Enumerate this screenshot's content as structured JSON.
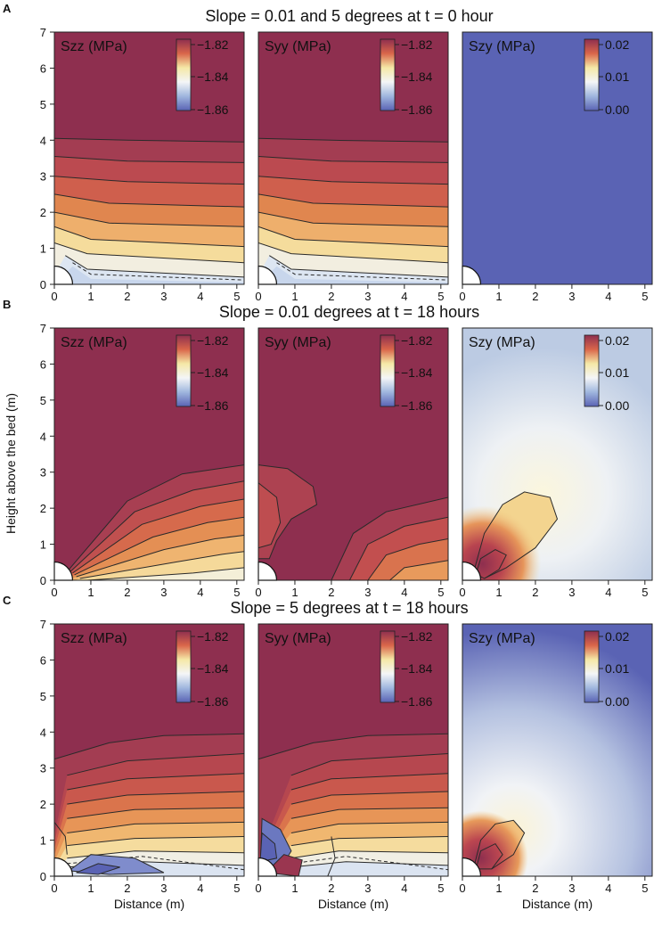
{
  "figure": {
    "ylabel": "Height above the bed (m)",
    "xlabel": "Distance (m)",
    "colors": {
      "red": "#8e2f4f",
      "orange": "#d9664a",
      "yellow": "#f5e8a6",
      "white": "#f4f5f7",
      "lightblue": "#9fb6de",
      "blue": "#5a63b4",
      "contour": "#2a2a2a"
    }
  },
  "chart_data": [
    {
      "panel": "A",
      "title": "Slope = 0.01 and 5 degrees at t = 0 hour",
      "type": "heatmap",
      "xlim": [
        0,
        5.2
      ],
      "ylim": [
        0,
        7
      ],
      "xticks": [
        "0",
        "1",
        "2",
        "3",
        "4",
        "5"
      ],
      "yticks": [
        "0",
        "1",
        "2",
        "3",
        "4",
        "5",
        "6",
        "7"
      ],
      "subplots": [
        {
          "label": "Szz (MPa)",
          "colorbar_ticks": [
            "−1.82",
            "−1.84",
            "−1.86"
          ],
          "range": [
            -1.86,
            -1.82
          ],
          "pattern": "szz_t0"
        },
        {
          "label": "Syy (MPa)",
          "colorbar_ticks": [
            "−1.82",
            "−1.84",
            "−1.86"
          ],
          "range": [
            -1.86,
            -1.82
          ],
          "pattern": "syy_t0"
        },
        {
          "label": "Szy (MPa)",
          "colorbar_ticks": [
            "0.02",
            "0.01",
            "0.00"
          ],
          "range": [
            0,
            0.02
          ],
          "pattern": "szy_t0"
        }
      ]
    },
    {
      "panel": "B",
      "title": "Slope = 0.01 degrees at t = 18 hours",
      "type": "heatmap",
      "xlim": [
        0,
        5.2
      ],
      "ylim": [
        0,
        7
      ],
      "xticks": [
        "0",
        "1",
        "2",
        "3",
        "4",
        "5"
      ],
      "yticks": [
        "0",
        "1",
        "2",
        "3",
        "4",
        "5",
        "6",
        "7"
      ],
      "subplots": [
        {
          "label": "Szz (MPa)",
          "colorbar_ticks": [
            "−1.82",
            "−1.84",
            "−1.86"
          ],
          "range": [
            -1.86,
            -1.82
          ],
          "pattern": "szz_b"
        },
        {
          "label": "Syy (MPa)",
          "colorbar_ticks": [
            "−1.82",
            "−1.84",
            "−1.86"
          ],
          "range": [
            -1.86,
            -1.82
          ],
          "pattern": "syy_b"
        },
        {
          "label": "Szy (MPa)",
          "colorbar_ticks": [
            "0.02",
            "0.01",
            "0.00"
          ],
          "range": [
            0,
            0.02
          ],
          "pattern": "szy_b"
        }
      ]
    },
    {
      "panel": "C",
      "title": "Slope = 5 degrees at t = 18 hours",
      "type": "heatmap",
      "xlim": [
        0,
        5.2
      ],
      "ylim": [
        0,
        7
      ],
      "xticks": [
        "0",
        "1",
        "2",
        "3",
        "4",
        "5"
      ],
      "yticks": [
        "0",
        "1",
        "2",
        "3",
        "4",
        "5",
        "6",
        "7"
      ],
      "subplots": [
        {
          "label": "Szz (MPa)",
          "colorbar_ticks": [
            "−1.82",
            "−1.84",
            "−1.86"
          ],
          "range": [
            -1.86,
            -1.82
          ],
          "pattern": "szz_c"
        },
        {
          "label": "Syy (MPa)",
          "colorbar_ticks": [
            "−1.82",
            "−1.84",
            "−1.86"
          ],
          "range": [
            -1.86,
            -1.82
          ],
          "pattern": "syy_c"
        },
        {
          "label": "Szy (MPa)",
          "colorbar_ticks": [
            "0.02",
            "0.01",
            "0.00"
          ],
          "range": [
            0,
            0.02
          ],
          "pattern": "szy_c"
        }
      ]
    }
  ]
}
